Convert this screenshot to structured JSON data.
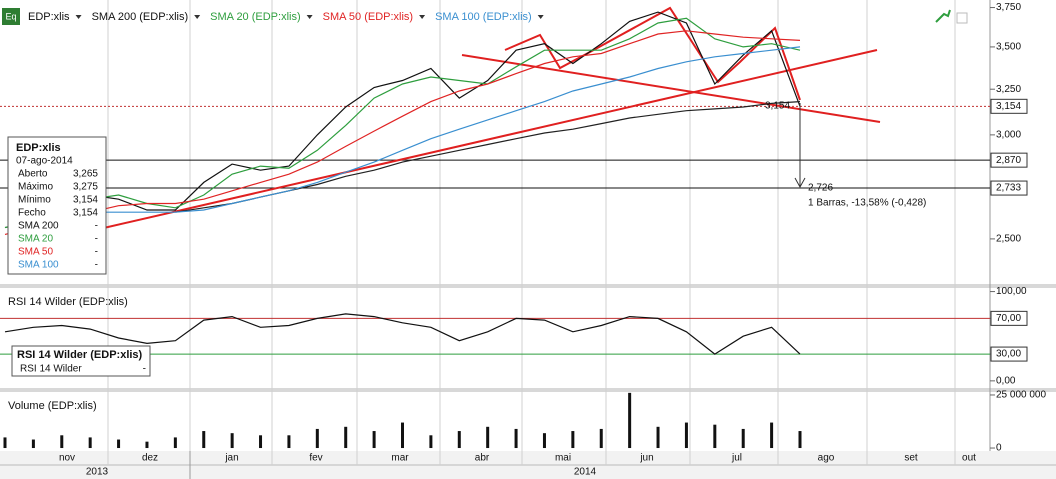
{
  "chart_data": [
    {
      "type": "line",
      "log_scale": true,
      "series": [
        {
          "name": "EDP:xlis",
          "color": "#111111",
          "values": [
            2.55,
            2.58,
            2.62,
            2.7,
            2.68,
            2.63,
            2.63,
            2.76,
            2.85,
            2.82,
            2.84,
            3.0,
            3.15,
            3.26,
            3.3,
            3.37,
            3.2,
            3.3,
            3.48,
            3.52,
            3.4,
            3.52,
            3.66,
            3.72,
            3.65,
            3.28,
            3.45,
            3.6,
            3.154
          ]
        },
        {
          "name": "SMA 200 (EDP:xlis)",
          "color": "#222222",
          "values": [
            null,
            null,
            null,
            null,
            null,
            null,
            2.62,
            2.64,
            2.66,
            2.69,
            2.72,
            2.75,
            2.79,
            2.82,
            2.86,
            2.89,
            2.92,
            2.95,
            2.98,
            3.01,
            3.03,
            3.06,
            3.09,
            3.11,
            3.13,
            3.14,
            3.15,
            3.17,
            3.18
          ]
        },
        {
          "name": "SMA 20 (EDP:xlis)",
          "color": "#2e9e3e",
          "values": [
            2.55,
            2.58,
            2.62,
            2.68,
            2.7,
            2.66,
            2.64,
            2.7,
            2.8,
            2.84,
            2.83,
            2.92,
            3.05,
            3.2,
            3.28,
            3.32,
            3.3,
            3.28,
            3.38,
            3.48,
            3.48,
            3.48,
            3.55,
            3.65,
            3.68,
            3.55,
            3.5,
            3.52,
            3.48
          ]
        },
        {
          "name": "SMA 50 (EDP:xlis)",
          "color": "#e02424",
          "values": [
            2.52,
            2.55,
            2.58,
            2.62,
            2.65,
            2.66,
            2.66,
            2.68,
            2.72,
            2.76,
            2.8,
            2.86,
            2.94,
            3.02,
            3.1,
            3.18,
            3.24,
            3.28,
            3.34,
            3.4,
            3.44,
            3.46,
            3.52,
            3.58,
            3.6,
            3.58,
            3.56,
            3.55,
            3.54
          ]
        },
        {
          "name": "SMA 100 (EDP:xlis)",
          "color": "#3a8fd0",
          "values": [
            null,
            null,
            null,
            2.62,
            2.62,
            2.62,
            2.62,
            2.63,
            2.66,
            2.69,
            2.72,
            2.76,
            2.81,
            2.86,
            2.92,
            2.98,
            3.03,
            3.08,
            3.13,
            3.18,
            3.24,
            3.28,
            3.32,
            3.37,
            3.41,
            3.44,
            3.46,
            3.48,
            3.5
          ]
        }
      ],
      "ylim": [
        2.31,
        3.8
      ],
      "yticks": [
        {
          "value": 3.75,
          "label": "3,750"
        },
        {
          "value": 3.5,
          "label": "3,500"
        },
        {
          "value": 3.25,
          "label": "3,250"
        },
        {
          "value": 3.0,
          "label": "3,000"
        },
        {
          "value": 2.5,
          "label": "2,500"
        }
      ],
      "markers": [
        {
          "value": 3.154,
          "label": "3,154",
          "color": "#c03030"
        },
        {
          "value": 2.87,
          "label": "2,870",
          "color": "#111111"
        },
        {
          "value": 2.733,
          "label": "2,733",
          "color": "#111111"
        }
      ],
      "annotations": [
        "3,154",
        "2,726",
        "1 Barras, -13,58% (-0,428)"
      ]
    },
    {
      "type": "line",
      "title": "RSI 14 Wilder (EDP:xlis)",
      "series": [
        {
          "name": "RSI 14 Wilder",
          "color": "#111111",
          "values": [
            55,
            60,
            62,
            58,
            48,
            42,
            45,
            68,
            72,
            60,
            62,
            70,
            75,
            72,
            65,
            60,
            45,
            55,
            70,
            68,
            55,
            62,
            72,
            70,
            55,
            30,
            50,
            60,
            30
          ]
        }
      ],
      "ylim": [
        -8,
        104
      ],
      "yticks": [
        {
          "value": 100,
          "label": "100,00"
        },
        {
          "value": 70,
          "label": "70,00"
        },
        {
          "value": 30,
          "label": "30,00"
        },
        {
          "value": 0,
          "label": "0,00"
        }
      ],
      "levels": [
        {
          "value": 70,
          "color": "#c03030"
        },
        {
          "value": 30,
          "color": "#2e9e3e"
        }
      ]
    },
    {
      "type": "bar",
      "title": "Volume (EDP:xlis)",
      "color": "#111111",
      "values": [
        5000000,
        4000000,
        6000000,
        5000000,
        4000000,
        3000000,
        5000000,
        8000000,
        7000000,
        6000000,
        6000000,
        9000000,
        10000000,
        8000000,
        12000000,
        6000000,
        8000000,
        10000000,
        9000000,
        7000000,
        8000000,
        9000000,
        26000000,
        10000000,
        12000000,
        11000000,
        9000000,
        12000000,
        8000000
      ],
      "ylim": [
        -1400000,
        26400000
      ],
      "yticks": [
        {
          "value": 25000000,
          "label": "25 000 000"
        },
        0
      ]
    }
  ],
  "x_axis": {
    "months": [
      "nov",
      "dez",
      "jan",
      "fev",
      "mar",
      "abr",
      "mai",
      "jun",
      "jul",
      "ago",
      "set",
      "out"
    ],
    "years": [
      "2013",
      "2014"
    ]
  },
  "info_box": {
    "title": "EDP:xlis",
    "date": "07-ago-2014",
    "rows": [
      [
        "Aberto",
        "3,265"
      ],
      [
        "Máximo",
        "3,275"
      ],
      [
        "Mínimo",
        "3,154"
      ],
      [
        "Fecho",
        "3,154"
      ],
      [
        "SMA 200",
        "-"
      ],
      [
        "SMA 20",
        "-"
      ],
      [
        "SMA 50",
        "-"
      ],
      [
        "SMA 100",
        "-"
      ]
    ]
  },
  "rsi_box": {
    "title": "RSI 14 Wilder (EDP:xlis)",
    "row": [
      "RSI 14 Wilder",
      "-"
    ]
  },
  "toolbar": {
    "icon": "Eq"
  }
}
